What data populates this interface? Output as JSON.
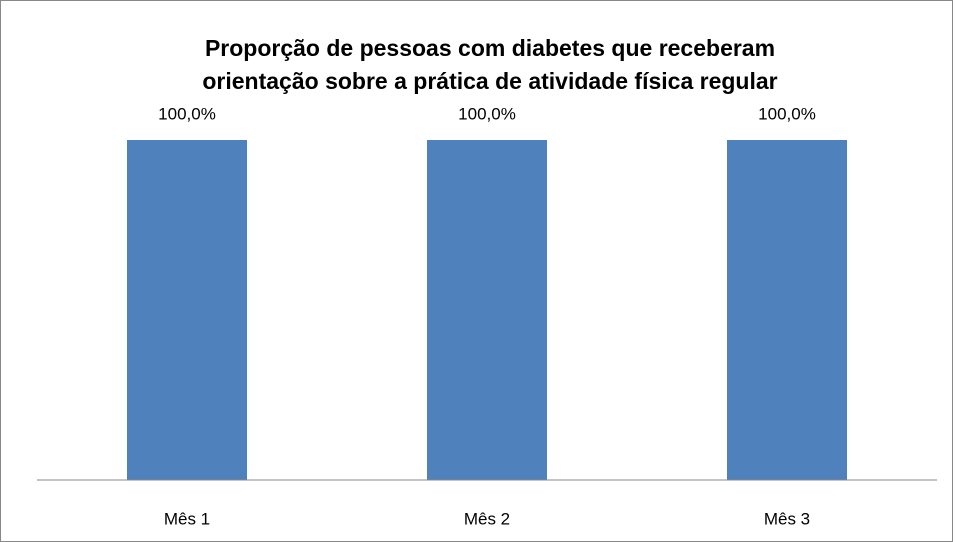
{
  "chart_data": {
    "type": "bar",
    "title": [
      "Proporção de pessoas com diabetes que receberam",
      "orientação sobre a prática de atividade física regular"
    ],
    "categories": [
      "Mês 1",
      "Mês 2",
      "Mês 3"
    ],
    "values": [
      100,
      100,
      100
    ],
    "value_labels": [
      "100,0%",
      "100,0%",
      "100,0%"
    ],
    "color": "#4f81bd",
    "ylim": [
      0,
      120
    ]
  }
}
